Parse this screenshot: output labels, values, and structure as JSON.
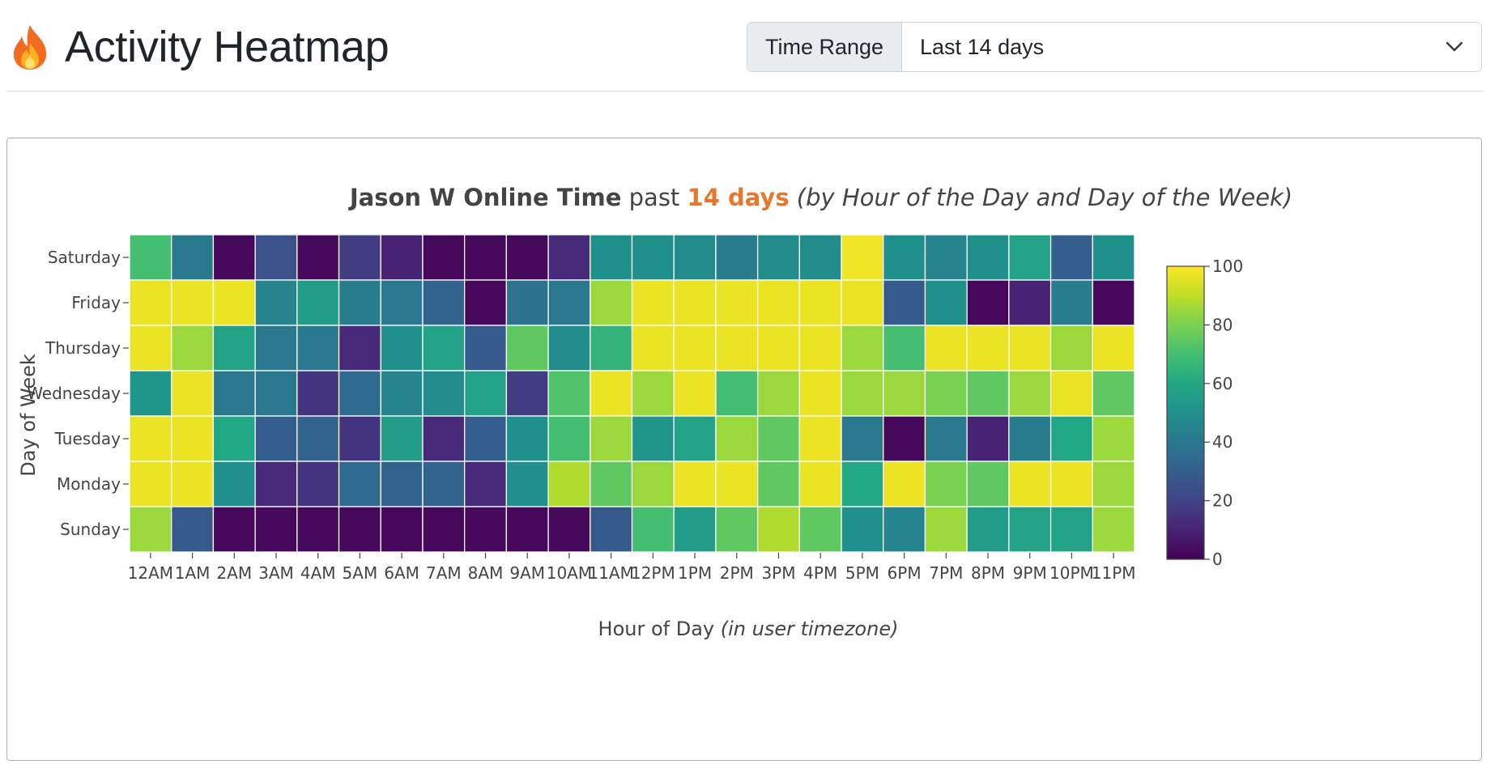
{
  "header": {
    "title": "Activity Heatmap",
    "title_icon": "flame-icon"
  },
  "time_range": {
    "label": "Time Range",
    "selected": "Last 14 days",
    "dropdown_icon": "chevron-down-icon"
  },
  "chart_data": {
    "type": "heatmap",
    "title": {
      "bold": "Jason W Online Time",
      "normal": " past ",
      "highlight": "14 days",
      "italic": " (by Hour of the Day and Day of the Week)"
    },
    "xlabel": "Hour of Day",
    "xlabel_italic": " (in user timezone)",
    "ylabel": "Day of Week",
    "x": [
      "12AM",
      "1AM",
      "2AM",
      "3AM",
      "4AM",
      "5AM",
      "6AM",
      "7AM",
      "8AM",
      "9AM",
      "10AM",
      "11AM",
      "12PM",
      "1PM",
      "2PM",
      "3PM",
      "4PM",
      "5PM",
      "6PM",
      "7PM",
      "8PM",
      "9PM",
      "10PM",
      "11PM"
    ],
    "y": [
      "Saturday",
      "Friday",
      "Thursday",
      "Wednesday",
      "Tuesday",
      "Monday",
      "Sunday"
    ],
    "z": [
      [
        70,
        40,
        2,
        25,
        2,
        18,
        10,
        2,
        2,
        2,
        12,
        50,
        50,
        48,
        42,
        48,
        48,
        98,
        50,
        45,
        50,
        58,
        30,
        50
      ],
      [
        97,
        97,
        97,
        45,
        55,
        42,
        40,
        32,
        2,
        38,
        40,
        85,
        97,
        97,
        97,
        97,
        97,
        97,
        28,
        50,
        2,
        10,
        42,
        2
      ],
      [
        97,
        85,
        58,
        40,
        40,
        12,
        50,
        58,
        28,
        75,
        48,
        65,
        97,
        97,
        97,
        97,
        97,
        85,
        70,
        97,
        97,
        97,
        85,
        97
      ],
      [
        52,
        97,
        40,
        40,
        15,
        35,
        45,
        48,
        58,
        18,
        72,
        97,
        85,
        97,
        70,
        85,
        97,
        85,
        85,
        80,
        75,
        85,
        97,
        75
      ],
      [
        97,
        97,
        60,
        30,
        32,
        15,
        55,
        12,
        30,
        50,
        70,
        85,
        52,
        58,
        85,
        75,
        97,
        40,
        2,
        40,
        10,
        42,
        60,
        85
      ],
      [
        97,
        97,
        50,
        12,
        15,
        35,
        32,
        32,
        12,
        50,
        88,
        75,
        85,
        97,
        97,
        75,
        97,
        60,
        97,
        80,
        75,
        97,
        97,
        85
      ],
      [
        85,
        28,
        2,
        2,
        2,
        2,
        2,
        2,
        2,
        2,
        2,
        28,
        70,
        55,
        75,
        88,
        75,
        50,
        45,
        85,
        55,
        58,
        58,
        85
      ]
    ],
    "zmin": 0,
    "zmax": 100,
    "colorscale": "Viridis",
    "colorbar_ticks": [
      0,
      20,
      40,
      60,
      80,
      100
    ],
    "title_highlight_color": "#e8772e"
  }
}
